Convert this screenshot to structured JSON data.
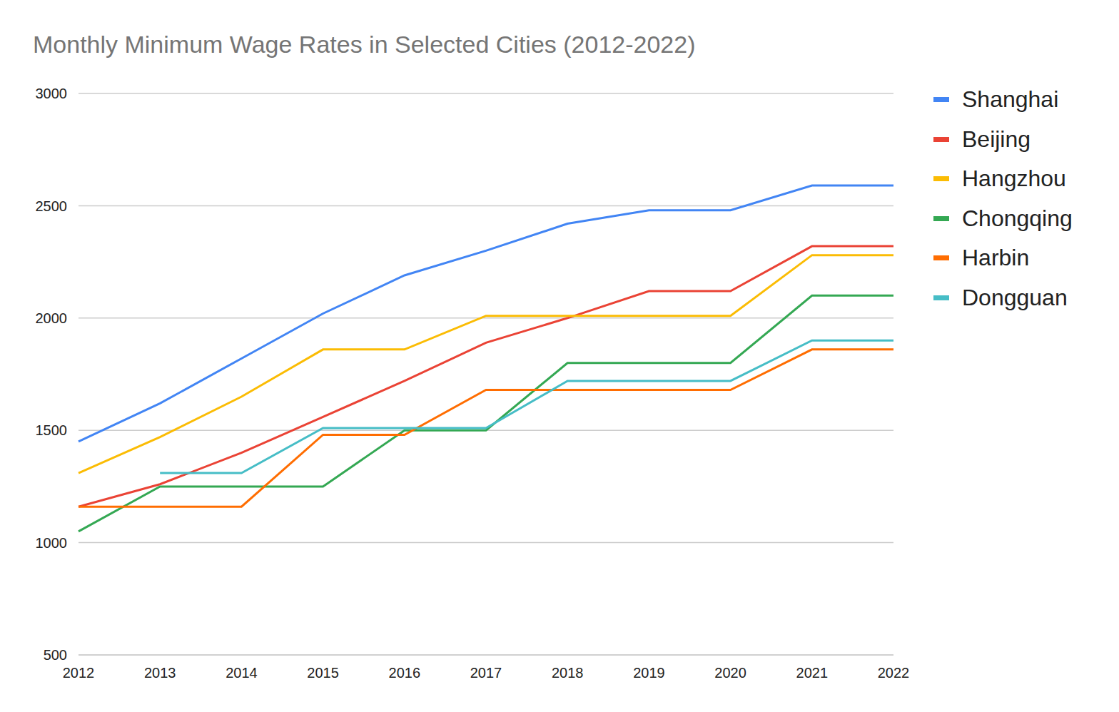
{
  "chart_data": {
    "type": "line",
    "title": "Monthly Minimum Wage Rates in Selected Cities (2012-2022)",
    "categories": [
      "2012",
      "2013",
      "2014",
      "2015",
      "2016",
      "2017",
      "2018",
      "2019",
      "2020",
      "2021",
      "2022"
    ],
    "series": [
      {
        "name": "Shanghai",
        "color": "#4285f4",
        "values": [
          1450,
          1620,
          1820,
          2020,
          2190,
          2300,
          2420,
          2480,
          2480,
          2590,
          2590
        ]
      },
      {
        "name": "Beijing",
        "color": "#ea4335",
        "values": [
          1160,
          1260,
          1400,
          1560,
          1720,
          1890,
          2000,
          2120,
          2120,
          2320,
          2320
        ]
      },
      {
        "name": "Hangzhou",
        "color": "#fbbc04",
        "values": [
          1310,
          1470,
          1650,
          1860,
          1860,
          2010,
          2010,
          2010,
          2010,
          2280,
          2280
        ]
      },
      {
        "name": "Chongqing",
        "color": "#34a853",
        "values": [
          1050,
          1250,
          1250,
          1250,
          1500,
          1500,
          1800,
          1800,
          1800,
          2100,
          2100
        ]
      },
      {
        "name": "Harbin",
        "color": "#ff6d01",
        "values": [
          1160,
          1160,
          1160,
          1480,
          1480,
          1680,
          1680,
          1680,
          1680,
          1860,
          1860
        ]
      },
      {
        "name": "Dongguan",
        "color": "#46bdc6",
        "values": [
          null,
          1310,
          1310,
          1510,
          1510,
          1510,
          1720,
          1720,
          1720,
          1900,
          1900
        ]
      }
    ],
    "ylim": [
      500,
      3000
    ],
    "yticks": [
      500,
      1000,
      1500,
      2000,
      2500,
      3000
    ],
    "grid": true,
    "legend": "right"
  }
}
